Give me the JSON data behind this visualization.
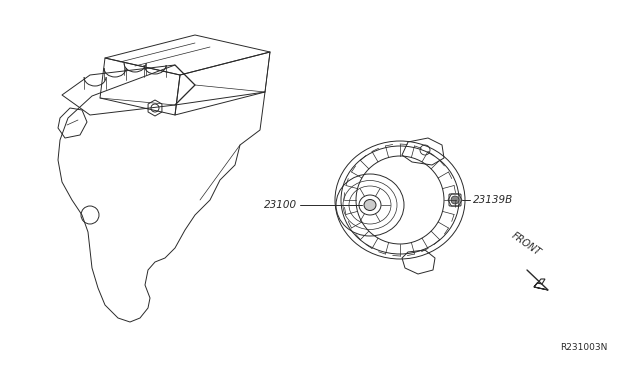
{
  "background_color": "#ffffff",
  "line_color": "#2a2a2a",
  "label_23100": "23100",
  "label_23139B": "23139B",
  "label_FRONT": "FRONT",
  "label_ref": "R231003N",
  "figsize": [
    6.4,
    3.72
  ],
  "dpi": 100
}
